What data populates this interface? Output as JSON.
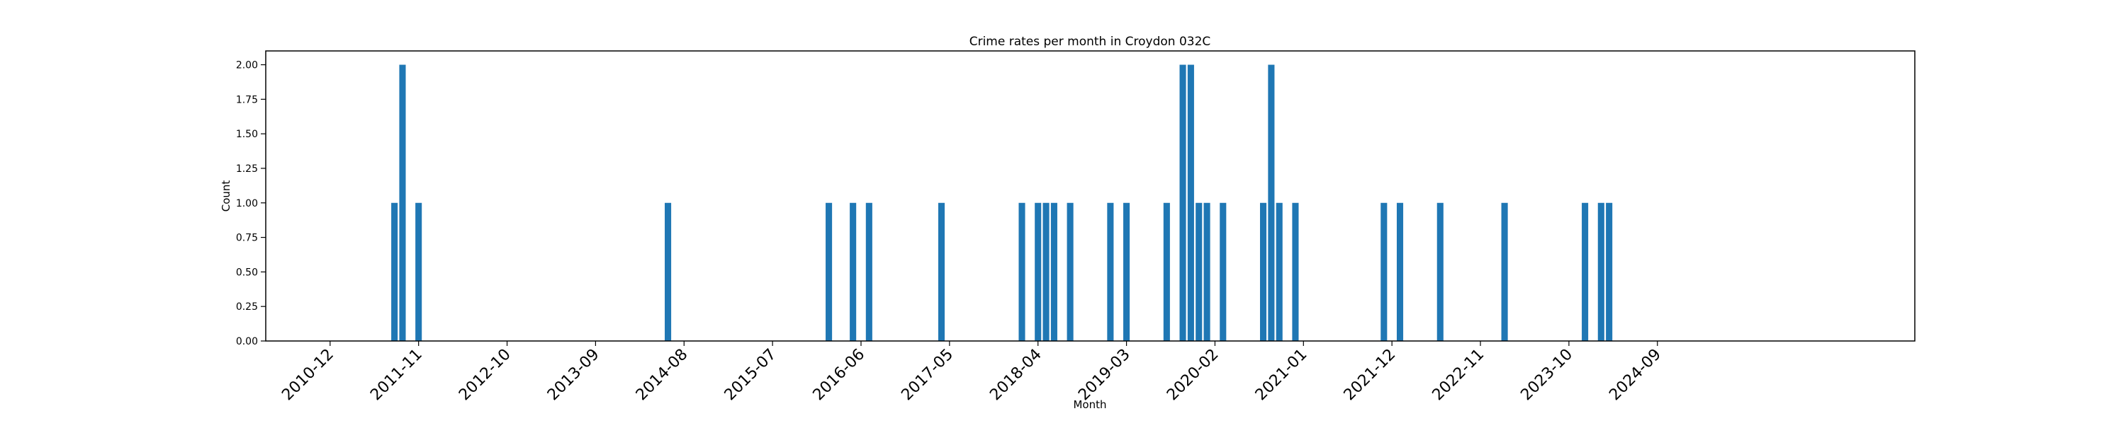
{
  "chart_data": {
    "type": "bar",
    "title": "Crime rates per month in Croydon 032C",
    "xlabel": "Month",
    "ylabel": "Count",
    "ylim": [
      0,
      2.1
    ],
    "xlim": [
      "2010-04",
      "2027-05"
    ],
    "y_ticks": [
      "0.00",
      "0.25",
      "0.50",
      "0.75",
      "1.00",
      "1.25",
      "1.50",
      "1.75",
      "2.00"
    ],
    "x_ticks": [
      "2010-12",
      "2011-11",
      "2012-10",
      "2013-09",
      "2014-08",
      "2015-07",
      "2016-06",
      "2017-05",
      "2018-04",
      "2019-03",
      "2020-02",
      "2021-01",
      "2021-12",
      "2022-11",
      "2023-10",
      "2024-09"
    ],
    "grid": false,
    "bar_color": "#1f77b4",
    "x": [
      "2011-08",
      "2011-09",
      "2011-11",
      "2014-06",
      "2016-02",
      "2016-05",
      "2016-07",
      "2017-04",
      "2018-02",
      "2018-04",
      "2018-05",
      "2018-06",
      "2018-08",
      "2019-01",
      "2019-03",
      "2019-08",
      "2019-10",
      "2019-11",
      "2019-12",
      "2020-01",
      "2020-03",
      "2020-08",
      "2020-09",
      "2020-10",
      "2020-12",
      "2021-11",
      "2022-01",
      "2022-06",
      "2023-02",
      "2023-12",
      "2024-02",
      "2024-03"
    ],
    "values": [
      1,
      2,
      1,
      1,
      1,
      1,
      1,
      1,
      1,
      1,
      1,
      1,
      1,
      1,
      1,
      1,
      2,
      2,
      1,
      1,
      1,
      1,
      2,
      1,
      1,
      1,
      1,
      1,
      1,
      1,
      1,
      1
    ]
  }
}
